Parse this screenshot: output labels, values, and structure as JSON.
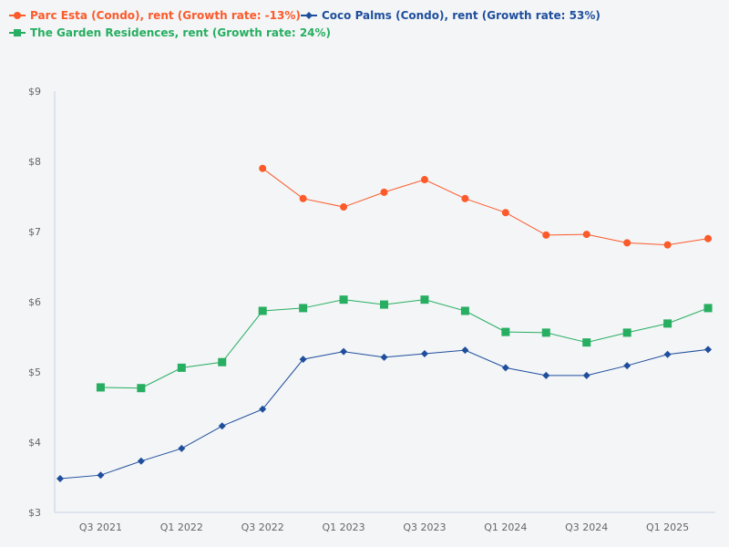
{
  "chart_data": {
    "type": "line",
    "title": "",
    "xlabel": "",
    "ylabel": "",
    "x": [
      "Q2 2021",
      "Q3 2021",
      "Q4 2021",
      "Q1 2022",
      "Q2 2022",
      "Q3 2022",
      "Q4 2022",
      "Q1 2023",
      "Q2 2023",
      "Q3 2023",
      "Q4 2023",
      "Q1 2024",
      "Q2 2024",
      "Q3 2024",
      "Q4 2024",
      "Q1 2025",
      "Q2 2025"
    ],
    "x_tick_labels": [
      "Q3 2021",
      "Q1 2022",
      "Q3 2022",
      "Q1 2023",
      "Q3 2023",
      "Q1 2024",
      "Q3 2024",
      "Q1 2025"
    ],
    "y_tick_labels": [
      "$3",
      "$4",
      "$5",
      "$6",
      "$7",
      "$8",
      "$9"
    ],
    "ylim": [
      3,
      9
    ],
    "grid": false,
    "legend_placement": "top-left",
    "series": [
      {
        "name": "Parc Esta (Condo), rent (Growth rate: -13%)",
        "color": "#fc5a2a",
        "marker": "circle",
        "values": [
          null,
          null,
          null,
          null,
          null,
          7.9,
          7.47,
          7.35,
          7.56,
          7.74,
          7.47,
          7.27,
          6.95,
          6.96,
          6.84,
          6.81,
          6.9
        ]
      },
      {
        "name": "Coco Palms (Condo), rent (Growth rate: 53%)",
        "color": "#1f4e9c",
        "marker": "diamond",
        "values": [
          3.48,
          3.53,
          3.73,
          3.91,
          4.23,
          4.47,
          5.18,
          5.29,
          5.21,
          5.26,
          5.31,
          5.06,
          4.95,
          4.95,
          5.09,
          5.25,
          5.32
        ]
      },
      {
        "name": "The Garden Residences, rent (Growth rate: 24%)",
        "color": "#27ae60",
        "marker": "square",
        "values": [
          null,
          4.78,
          4.77,
          5.06,
          5.14,
          5.87,
          5.91,
          6.03,
          5.96,
          6.03,
          5.87,
          5.57,
          5.56,
          5.42,
          5.56,
          5.69,
          5.91
        ]
      }
    ]
  }
}
